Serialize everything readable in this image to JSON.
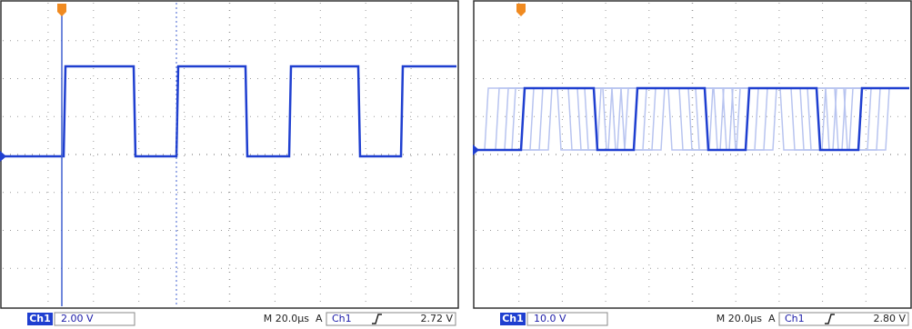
{
  "panels": [
    {
      "channel_badge": "Ch1",
      "scale": "2.00 V",
      "timebase": "M 20.0µs",
      "trigger_mode": "A",
      "trigger_channel": "Ch1",
      "trigger_level": "2.72 V"
    },
    {
      "channel_badge": "Ch1",
      "scale": "10.0 V",
      "timebase": "M 20.0µs",
      "trigger_mode": "A",
      "trigger_channel": "Ch1",
      "trigger_level": "2.80 V"
    }
  ]
}
